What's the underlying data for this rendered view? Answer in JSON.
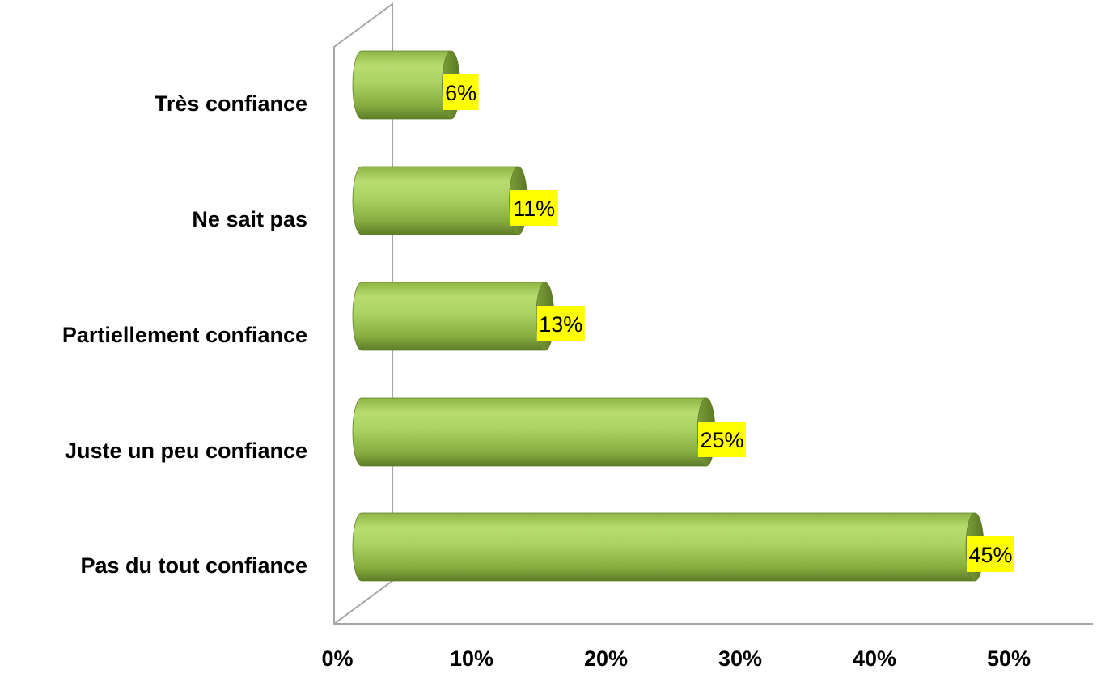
{
  "colors": {
    "bar_light": "#b2d76a",
    "bar_mid": "#9bc44f",
    "bar_dark": "#6f8f34",
    "bar_edge": "#5f7d2a",
    "label_bg": "#ffff00",
    "axis": "#a6a6a6"
  },
  "chart_data": {
    "type": "bar",
    "orientation": "horizontal",
    "categories": [
      "Très confiance",
      "Ne sait pas",
      "Partiellement confiance",
      "Juste un peu confiance",
      "Pas du tout confiance"
    ],
    "values": [
      6,
      11,
      13,
      25,
      45
    ],
    "data_labels": [
      "6%",
      "11%",
      "13%",
      "25%",
      "45%"
    ],
    "x_ticks": [
      "0%",
      "10%",
      "20%",
      "30%",
      "40%",
      "50%"
    ],
    "xlim": [
      0,
      50
    ],
    "grid": false,
    "legend": "none",
    "style": "3d-cylinder"
  }
}
